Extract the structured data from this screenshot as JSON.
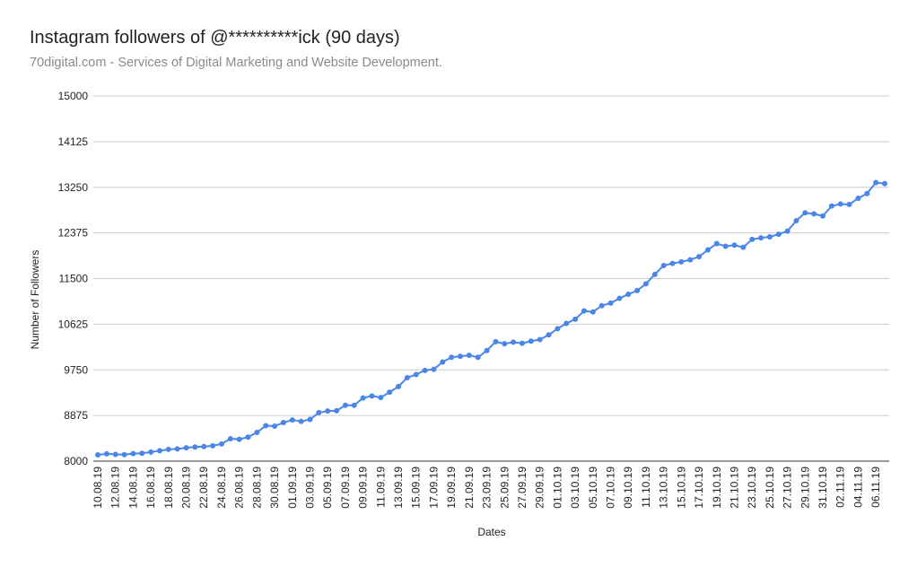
{
  "title": "Instagram followers of @**********ick (90 days)",
  "subtitle": "70digital.com - Services of Digital Marketing and Website Development.",
  "chart_data": {
    "type": "line",
    "xlabel": "Dates",
    "ylabel": "Number of Followers",
    "ylim": [
      8000,
      15000
    ],
    "yticks": [
      8000,
      8875,
      9750,
      10625,
      11500,
      12375,
      13250,
      14125,
      15000
    ],
    "x_tick_labels": [
      "10.08.19",
      "12.08.19",
      "14.08.19",
      "16.08.19",
      "18.08.19",
      "20.08.19",
      "22.08.19",
      "24.08.19",
      "26.08.19",
      "28.08.19",
      "30.08.19",
      "01.09.19",
      "03.09.19",
      "05.09.19",
      "07.09.19",
      "09.09.19",
      "11.09.19",
      "13.09.19",
      "15.09.19",
      "17.09.19",
      "19.09.19",
      "21.09.19",
      "23.09.19",
      "25.09.19",
      "27.09.19",
      "29.09.19",
      "01.10.19",
      "03.10.19",
      "05.10.19",
      "07.10.19",
      "09.10.19",
      "11.10.19",
      "13.10.19",
      "15.10.19",
      "17.10.19",
      "19.10.19",
      "21.10.19",
      "23.10.19",
      "25.10.19",
      "27.10.19",
      "29.10.19",
      "31.10.19",
      "02.11.19",
      "04.11.19",
      "06.11.19"
    ],
    "grid": true,
    "series": [
      {
        "color": "#4a86e8",
        "x": [
          "10.08.19",
          "11.08.19",
          "12.08.19",
          "13.08.19",
          "14.08.19",
          "15.08.19",
          "16.08.19",
          "17.08.19",
          "18.08.19",
          "19.08.19",
          "20.08.19",
          "21.08.19",
          "22.08.19",
          "23.08.19",
          "24.08.19",
          "25.08.19",
          "26.08.19",
          "27.08.19",
          "28.08.19",
          "29.08.19",
          "30.08.19",
          "31.08.19",
          "01.09.19",
          "02.09.19",
          "03.09.19",
          "04.09.19",
          "05.09.19",
          "06.09.19",
          "07.09.19",
          "08.09.19",
          "09.09.19",
          "10.09.19",
          "11.09.19",
          "12.09.19",
          "13.09.19",
          "14.09.19",
          "15.09.19",
          "16.09.19",
          "17.09.19",
          "18.09.19",
          "19.09.19",
          "20.09.19",
          "21.09.19",
          "22.09.19",
          "23.09.19",
          "24.09.19",
          "25.09.19",
          "26.09.19",
          "27.09.19",
          "28.09.19",
          "29.09.19",
          "30.09.19",
          "01.10.19",
          "02.10.19",
          "03.10.19",
          "04.10.19",
          "05.10.19",
          "06.10.19",
          "07.10.19",
          "08.10.19",
          "09.10.19",
          "10.10.19",
          "11.10.19",
          "12.10.19",
          "13.10.19",
          "14.10.19",
          "15.10.19",
          "16.10.19",
          "17.10.19",
          "18.10.19",
          "19.10.19",
          "20.10.19",
          "21.10.19",
          "22.10.19",
          "23.10.19",
          "24.10.19",
          "25.10.19",
          "26.10.19",
          "27.10.19",
          "28.10.19",
          "29.10.19",
          "30.10.19",
          "31.10.19",
          "01.11.19",
          "02.11.19",
          "03.11.19",
          "04.11.19",
          "05.11.19",
          "06.11.19",
          "07.11.19"
        ],
        "values": [
          8120,
          8140,
          8130,
          8125,
          8145,
          8150,
          8175,
          8200,
          8225,
          8235,
          8255,
          8270,
          8280,
          8295,
          8330,
          8430,
          8420,
          8460,
          8550,
          8680,
          8670,
          8740,
          8790,
          8760,
          8800,
          8930,
          8960,
          8965,
          9070,
          9070,
          9210,
          9250,
          9220,
          9320,
          9430,
          9600,
          9660,
          9740,
          9760,
          9900,
          9990,
          10010,
          10030,
          9990,
          10120,
          10290,
          10250,
          10280,
          10260,
          10300,
          10330,
          10420,
          10540,
          10640,
          10720,
          10880,
          10860,
          10980,
          11030,
          11120,
          11200,
          11270,
          11400,
          11580,
          11750,
          11790,
          11820,
          11860,
          11920,
          12050,
          12170,
          12120,
          12140,
          12100,
          12250,
          12280,
          12300,
          12350,
          12410,
          12610,
          12760,
          12740,
          12700,
          12890,
          12930,
          12920,
          13040,
          13130,
          13340,
          13320
        ]
      }
    ]
  }
}
